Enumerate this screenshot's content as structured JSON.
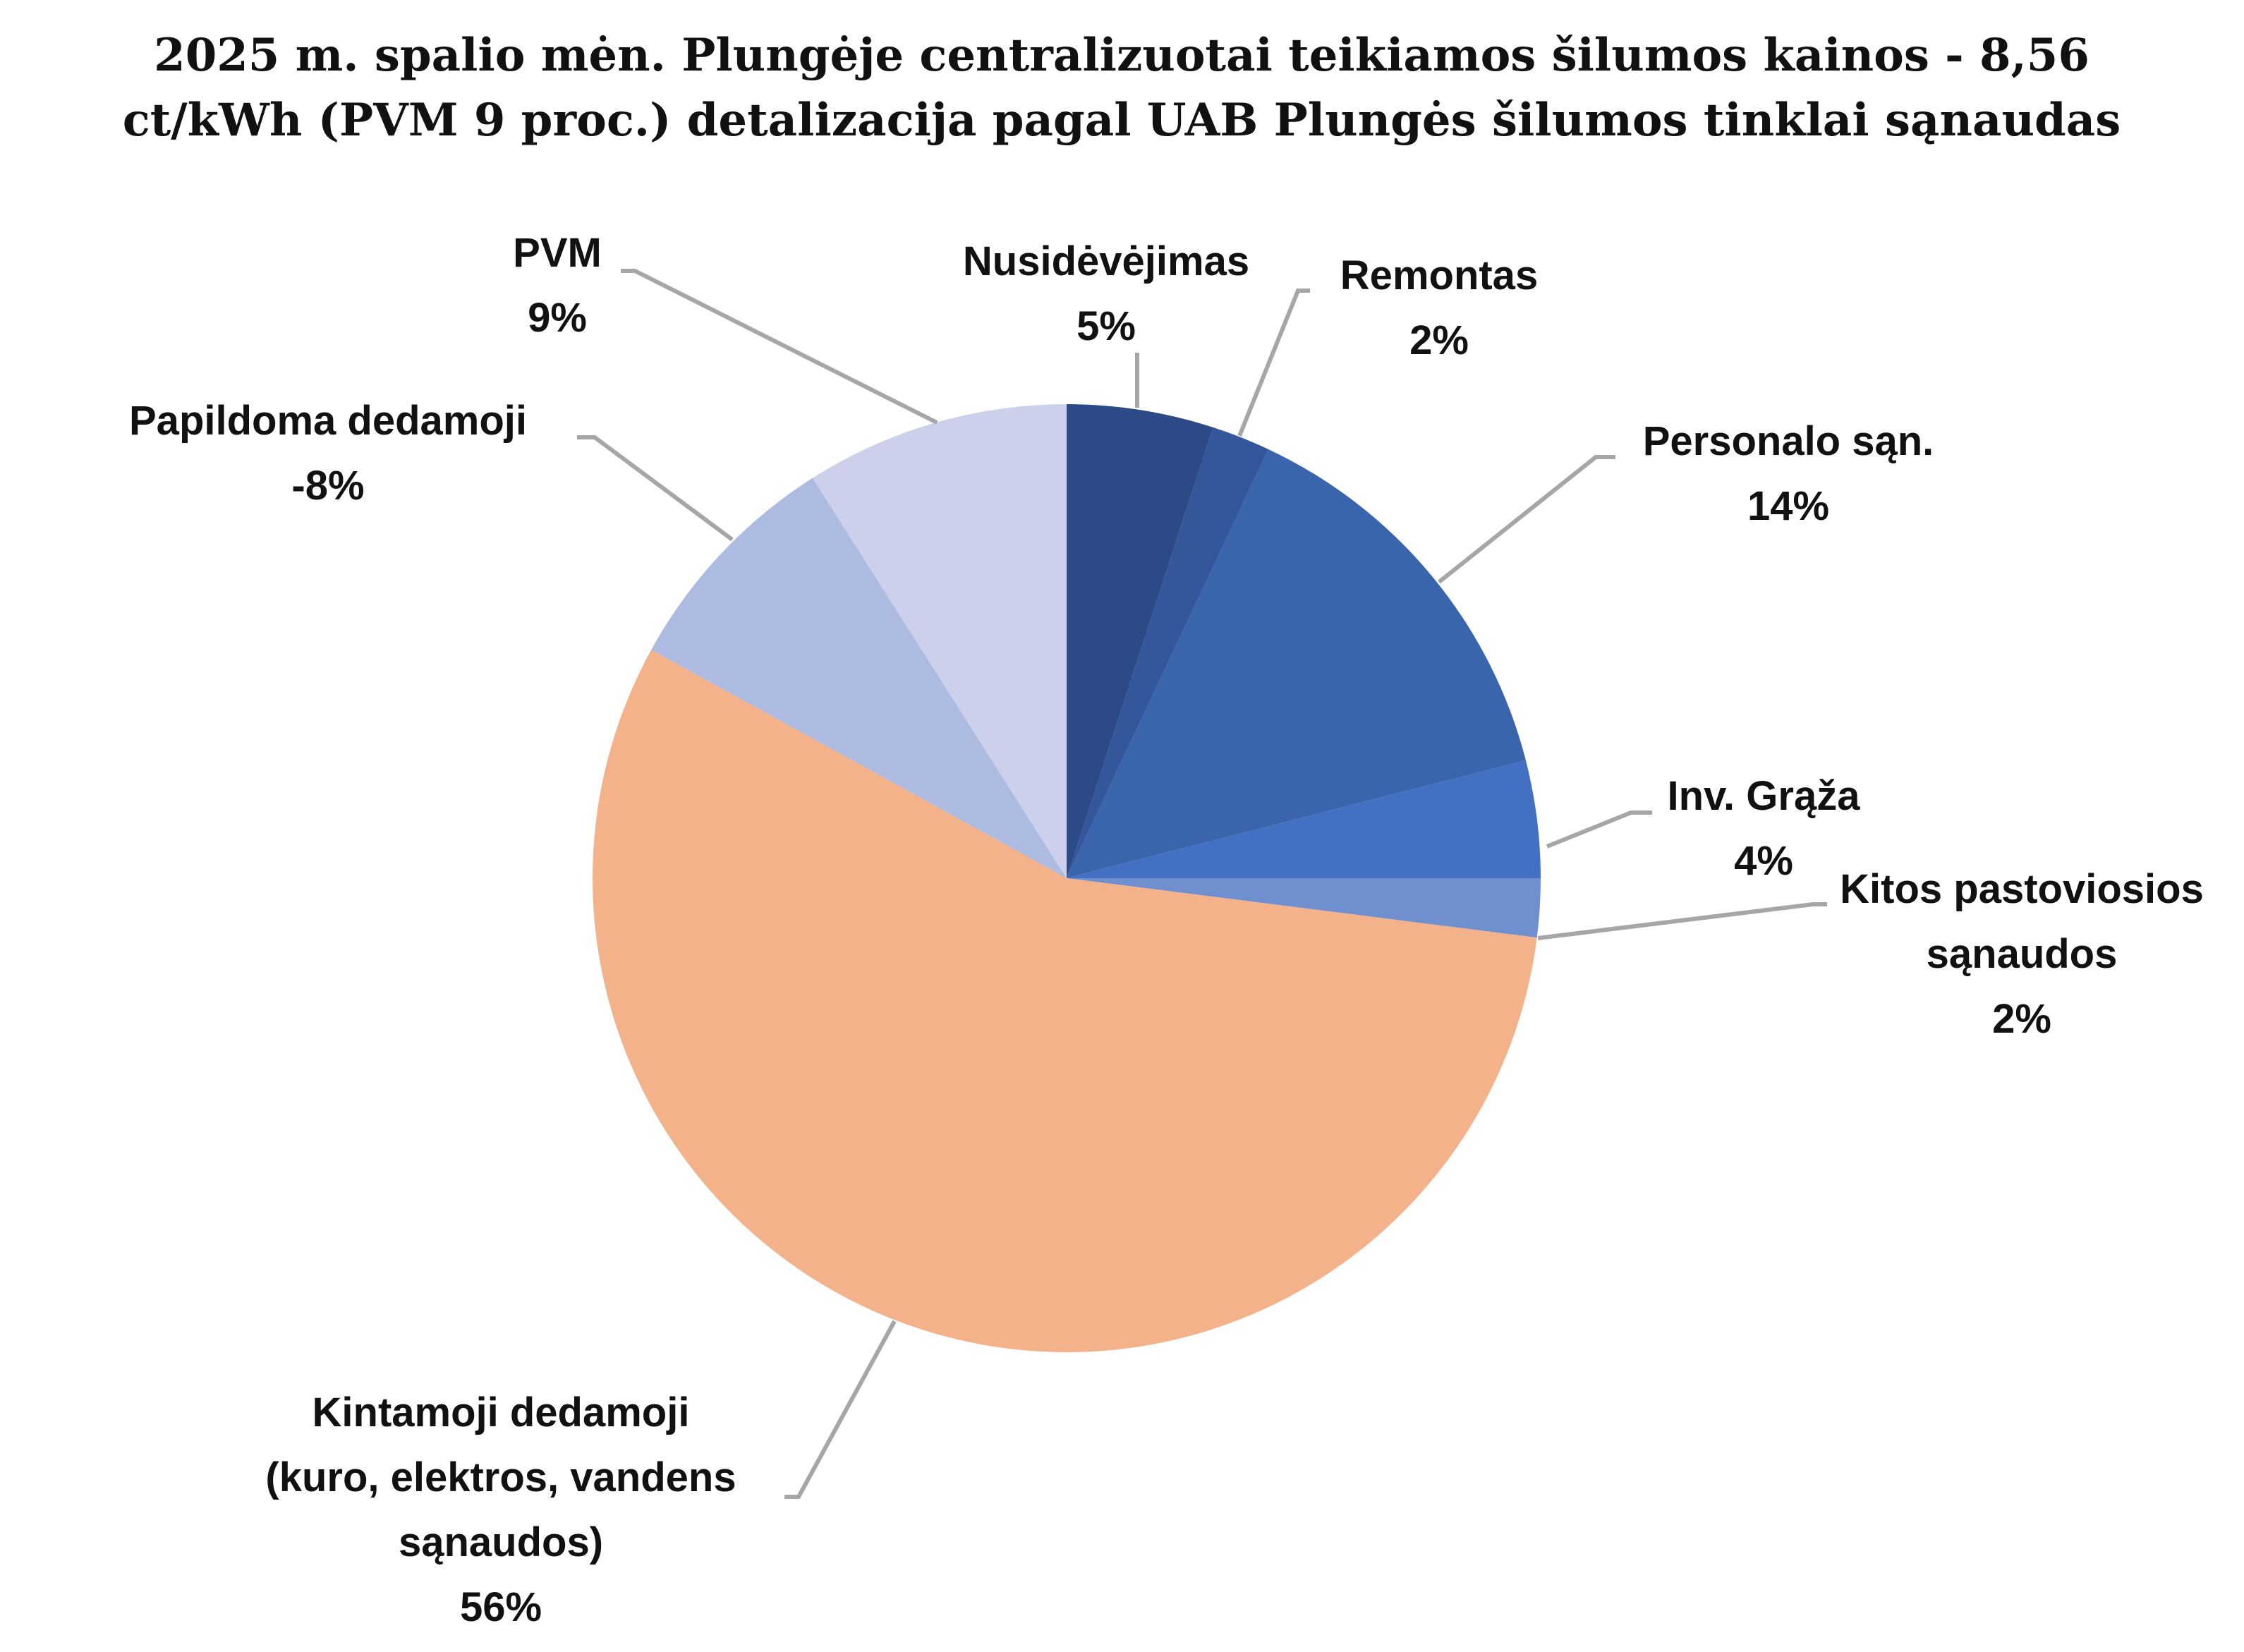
{
  "chart_data": {
    "type": "pie",
    "title_lines": [
      "2025 m. spalio mėn. Plungėje centralizuotai teikiamos šilumos kainos - 8,56",
      "ct/kWh (PVM 9 proc.) detalizacija pagal UAB Plungės šilumos tinklai sąnaudas"
    ],
    "slices": [
      {
        "label_lines": [
          "Nusidėvėjimas"
        ],
        "percent_label": "5%",
        "value": 5,
        "color": "#2c4a87"
      },
      {
        "label_lines": [
          "Remontas"
        ],
        "percent_label": "2%",
        "value": 2,
        "color": "#34569a"
      },
      {
        "label_lines": [
          "Personalo sąn."
        ],
        "percent_label": "14%",
        "value": 14,
        "color": "#3a65ad"
      },
      {
        "label_lines": [
          "Inv. Grąža"
        ],
        "percent_label": "4%",
        "value": 4,
        "color": "#4470c4"
      },
      {
        "label_lines": [
          "Kitos pastoviosios",
          "sąnaudos"
        ],
        "percent_label": "2%",
        "value": 2,
        "color": "#6f8fcf"
      },
      {
        "label_lines": [
          "Kintamoji dedamoji",
          "(kuro, elektros, vandens",
          "sąnaudos)"
        ],
        "percent_label": "56%",
        "value": 56,
        "color": "#f4b28a"
      },
      {
        "label_lines": [
          "Papildoma dedamoji"
        ],
        "percent_label": "-8%",
        "value": -8,
        "color": "#adbbe1"
      },
      {
        "label_lines": [
          "PVM"
        ],
        "percent_label": "9%",
        "value": 9,
        "color": "#ccd0ea"
      }
    ],
    "legend": "none",
    "start_angle": "12 o'clock, clockwise"
  }
}
